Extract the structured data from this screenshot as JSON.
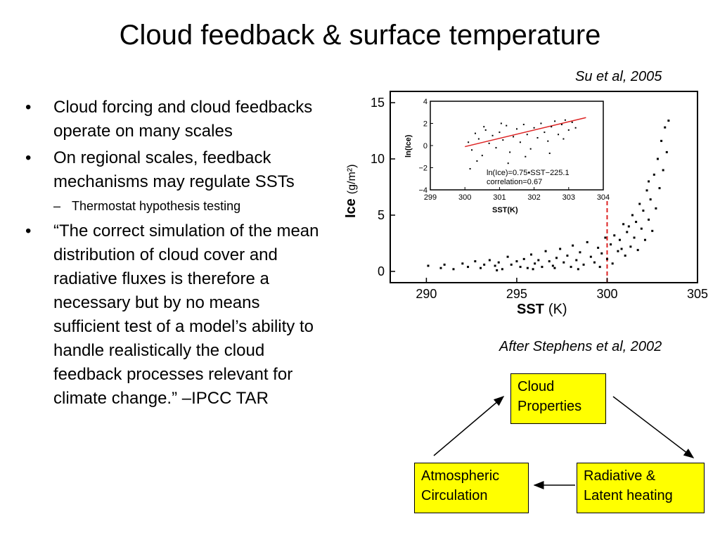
{
  "slide": {
    "title": "Cloud feedback & surface temperature",
    "citation_top": "Su et al, 2005",
    "citation_diagram": "After Stephens et al, 2002",
    "bullets": [
      "Cloud forcing and cloud feedbacks operate on many scales",
      "On regional scales, feedback mechanisms may regulate SSTs",
      "“The correct simulation of the mean distribution of cloud cover and radiative fluxes is therefore a necessary but by no means sufficient test of a model’s ability to handle realistically the cloud feedback processes relevant for climate change.” –IPCC TAR"
    ],
    "sub_bullet": "Thermostat hypothesis testing",
    "bullet_marker": "•",
    "sub_marker": "–"
  },
  "diagram": {
    "box_fill": "#ffff00",
    "cloud_line1": "Cloud",
    "cloud_line2": "Properties",
    "atm_line1": "Atmospheric",
    "atm_line2": "Circulation",
    "rad_line1": "Radiative &",
    "rad_line2": "Latent heating"
  },
  "chart_data": [
    {
      "type": "scatter",
      "xlabel": "SST",
      "xlabel_unit": "(K)",
      "ylabel": "Ice",
      "ylabel_unit": "(g/m²)",
      "xlim": [
        288,
        305
      ],
      "ylim": [
        -1,
        16
      ],
      "xticks": [
        290,
        295,
        300,
        305
      ],
      "yticks": [
        0,
        5,
        10,
        15
      ],
      "marker_line": {
        "x": 300,
        "color": "#dd2222",
        "style": "dashed"
      },
      "points": [
        [
          290.1,
          0.5
        ],
        [
          290.8,
          0.3
        ],
        [
          291.5,
          0.2
        ],
        [
          292.0,
          0.7
        ],
        [
          292.3,
          0.4
        ],
        [
          292.7,
          0.9
        ],
        [
          293.0,
          0.3
        ],
        [
          293.2,
          0.6
        ],
        [
          293.5,
          1.0
        ],
        [
          293.8,
          0.5
        ],
        [
          294.0,
          0.8
        ],
        [
          294.2,
          0.2
        ],
        [
          294.5,
          1.3
        ],
        [
          294.7,
          0.6
        ],
        [
          295.0,
          0.9
        ],
        [
          295.2,
          0.4
        ],
        [
          295.4,
          1.1
        ],
        [
          295.6,
          0.3
        ],
        [
          295.8,
          1.5
        ],
        [
          296.0,
          0.7
        ],
        [
          296.2,
          1.0
        ],
        [
          296.4,
          0.4
        ],
        [
          296.6,
          1.8
        ],
        [
          296.8,
          0.9
        ],
        [
          297.0,
          0.5
        ],
        [
          297.2,
          1.2
        ],
        [
          297.4,
          2.0
        ],
        [
          297.6,
          0.8
        ],
        [
          297.8,
          1.4
        ],
        [
          298.0,
          0.4
        ],
        [
          298.1,
          2.3
        ],
        [
          298.3,
          1.0
        ],
        [
          298.5,
          1.7
        ],
        [
          298.7,
          0.6
        ],
        [
          298.9,
          2.6
        ],
        [
          299.1,
          1.3
        ],
        [
          299.3,
          0.8
        ],
        [
          299.5,
          2.1
        ],
        [
          299.7,
          1.6
        ],
        [
          299.9,
          3.0
        ],
        [
          300.0,
          1.1
        ],
        [
          300.2,
          2.4
        ],
        [
          300.3,
          0.7
        ],
        [
          300.4,
          3.2
        ],
        [
          300.6,
          1.8
        ],
        [
          300.7,
          2.8
        ],
        [
          300.9,
          4.2
        ],
        [
          301.0,
          1.4
        ],
        [
          301.1,
          3.5
        ],
        [
          301.3,
          2.2
        ],
        [
          301.4,
          5.0
        ],
        [
          301.5,
          3.0
        ],
        [
          301.6,
          4.4
        ],
        [
          301.7,
          1.9
        ],
        [
          301.8,
          6.0
        ],
        [
          301.9,
          3.8
        ],
        [
          302.0,
          5.4
        ],
        [
          302.1,
          2.8
        ],
        [
          302.2,
          7.2
        ],
        [
          302.3,
          4.6
        ],
        [
          302.4,
          6.4
        ],
        [
          302.5,
          3.6
        ],
        [
          302.6,
          8.6
        ],
        [
          302.7,
          5.6
        ],
        [
          302.8,
          10.0
        ],
        [
          302.9,
          7.4
        ],
        [
          303.0,
          11.6
        ],
        [
          303.1,
          9.0
        ],
        [
          303.2,
          12.8
        ],
        [
          303.3,
          10.6
        ],
        [
          303.4,
          13.4
        ],
        [
          302.3,
          8.0
        ],
        [
          301.2,
          4.0
        ],
        [
          300.8,
          2.0
        ],
        [
          299.6,
          0.4
        ],
        [
          298.4,
          0.2
        ],
        [
          297.1,
          0.3
        ],
        [
          295.9,
          0.2
        ],
        [
          293.9,
          0.1
        ],
        [
          291.0,
          0.6
        ]
      ]
    },
    {
      "type": "scatter",
      "xlabel": "SST(K)",
      "ylabel": "ln(Ice)",
      "xlim": [
        299,
        304
      ],
      "ylim": [
        -4,
        4
      ],
      "xticks": [
        299,
        300,
        301,
        302,
        303,
        304
      ],
      "yticks": [
        -4,
        -2,
        0,
        2,
        4
      ],
      "annotation_line1": "ln(Ice)=0.75•SST−225.1",
      "annotation_line2": "correlation=0.67",
      "fit_line": {
        "slope": 0.75,
        "intercept": -225.1,
        "x_range": [
          300,
          303.5
        ],
        "color": "#dd2222"
      },
      "points": [
        [
          300.1,
          0.3
        ],
        [
          300.2,
          -0.4
        ],
        [
          300.3,
          1.1
        ],
        [
          300.4,
          0.6
        ],
        [
          300.5,
          -0.9
        ],
        [
          300.6,
          1.4
        ],
        [
          300.7,
          0.2
        ],
        [
          300.8,
          0.9
        ],
        [
          300.9,
          -0.2
        ],
        [
          301.0,
          1.2
        ],
        [
          301.1,
          0.5
        ],
        [
          301.2,
          1.8
        ],
        [
          301.3,
          -0.6
        ],
        [
          301.4,
          0.8
        ],
        [
          301.5,
          1.5
        ],
        [
          301.6,
          0.3
        ],
        [
          301.7,
          1.9
        ],
        [
          301.8,
          1.0
        ],
        [
          301.9,
          -0.3
        ],
        [
          302.0,
          1.6
        ],
        [
          302.1,
          0.7
        ],
        [
          302.2,
          2.0
        ],
        [
          302.3,
          1.2
        ],
        [
          302.4,
          0.4
        ],
        [
          302.5,
          1.7
        ],
        [
          302.6,
          2.2
        ],
        [
          302.7,
          1.0
        ],
        [
          302.8,
          1.9
        ],
        [
          302.9,
          2.3
        ],
        [
          303.0,
          1.4
        ],
        [
          303.1,
          2.1
        ],
        [
          303.2,
          1.6
        ],
        [
          300.15,
          -2.1
        ],
        [
          300.35,
          -1.4
        ],
        [
          301.25,
          -1.6
        ],
        [
          301.75,
          -1.0
        ],
        [
          302.45,
          -0.7
        ],
        [
          300.55,
          1.7
        ],
        [
          301.05,
          2.0
        ],
        [
          302.85,
          0.6
        ]
      ]
    }
  ]
}
